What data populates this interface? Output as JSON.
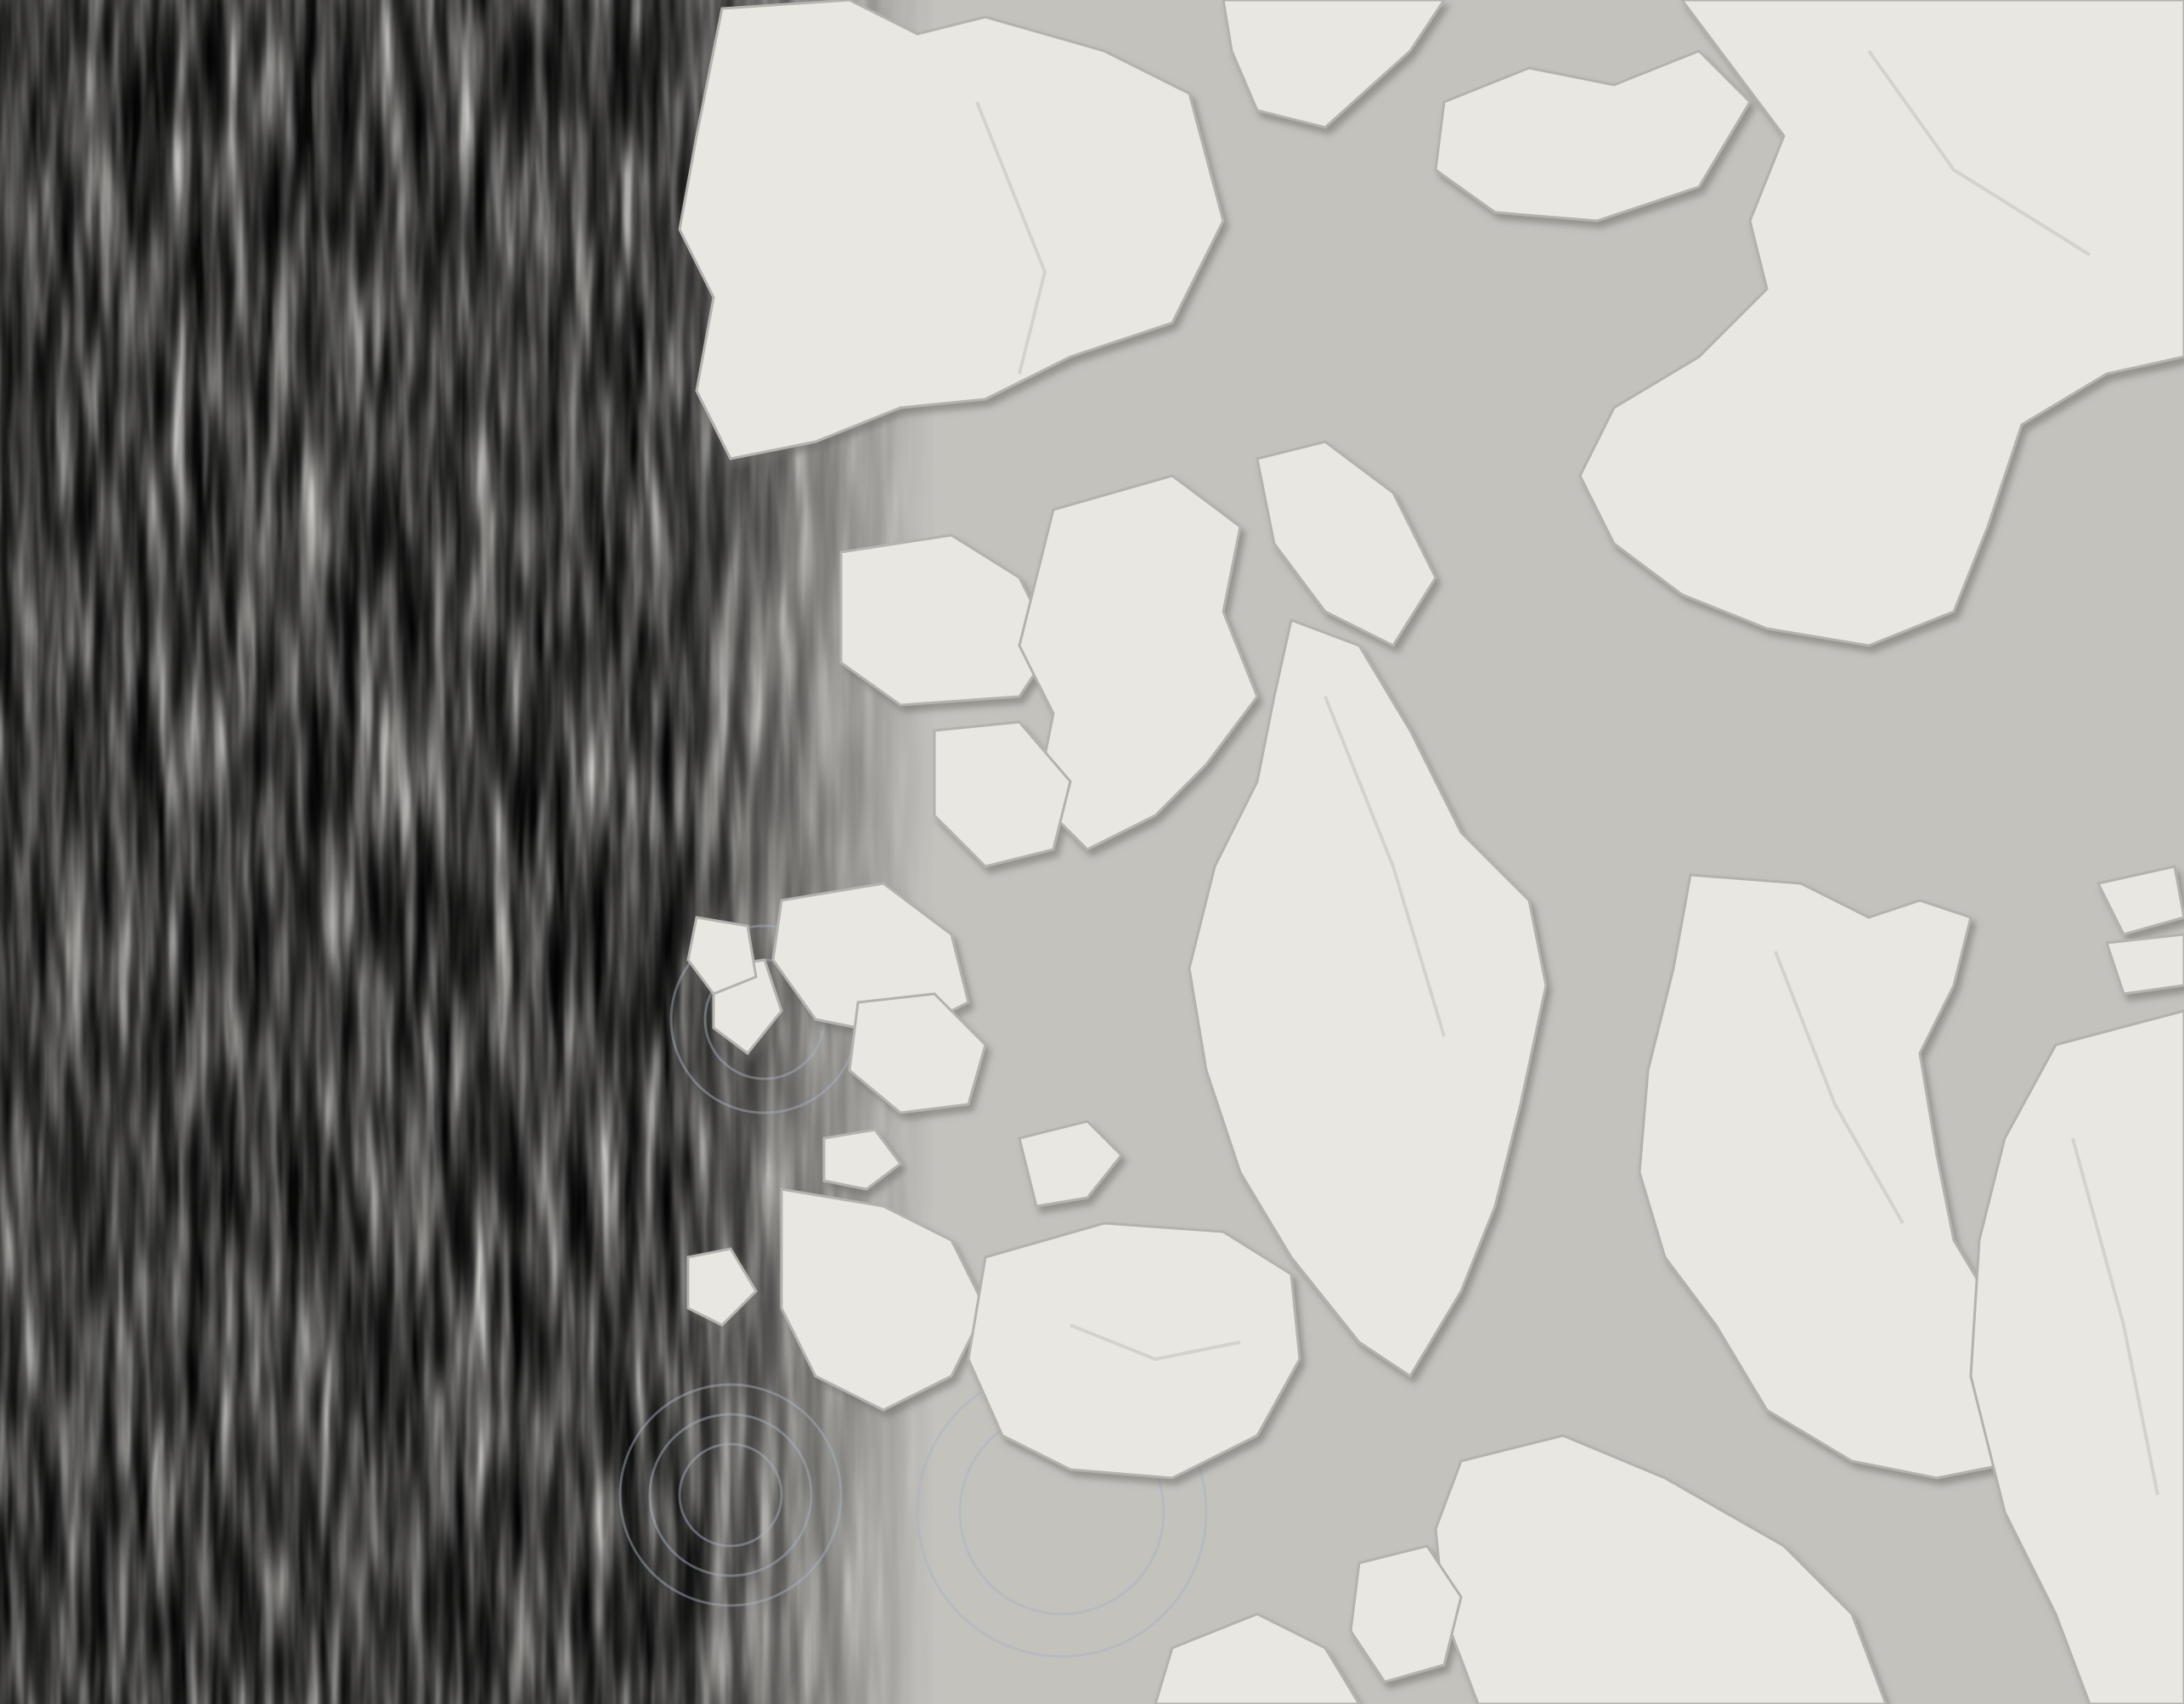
{
  "scene": {
    "kind": "wave-field-simulation",
    "colormap": {
      "negative": "#3a5fc7",
      "neutral": "#c9c7c2",
      "positive": "#b3341f"
    },
    "colors": {
      "water": "#c4c2bd",
      "land": "#e9e7e2",
      "land_shade": "#a8a6a0",
      "land_highlight": "#f8f7f3"
    },
    "legend_visible": false,
    "axes_visible": false
  }
}
